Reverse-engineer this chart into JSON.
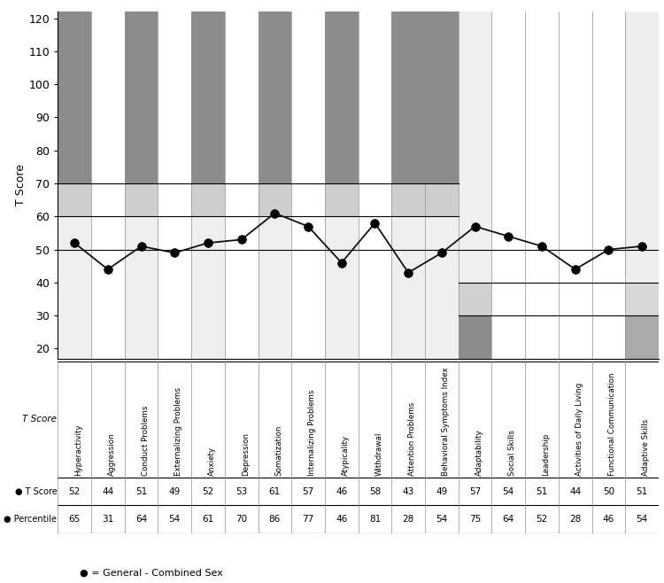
{
  "categories": [
    "Hyperactivity",
    "Aggression",
    "Conduct Problems",
    "Externalizing Problems",
    "Anxiety",
    "Depression",
    "Somatization",
    "Internalizing Problems",
    "Atypicality",
    "Withdrawal",
    "Attention Problems",
    "Behavioral Symptoms Index",
    "Adaptability",
    "Social Skills",
    "Leadership",
    "Activities of Daily Living",
    "Functional Communication",
    "Adaptive Skills"
  ],
  "t_scores": [
    52,
    44,
    51,
    49,
    52,
    53,
    61,
    57,
    46,
    58,
    43,
    49,
    57,
    54,
    51,
    44,
    50,
    51
  ],
  "percentiles": [
    65,
    31,
    64,
    54,
    61,
    70,
    86,
    77,
    46,
    81,
    28,
    54,
    75,
    64,
    52,
    28,
    46,
    54
  ],
  "ylim": [
    17,
    122
  ],
  "yticks": [
    20,
    30,
    40,
    50,
    60,
    70,
    80,
    90,
    100,
    110,
    120
  ],
  "n_clinical": 12,
  "n_total": 18,
  "col_bg": {
    "clinical": [
      [
        "#8C8C8C",
        "#D0D0D0",
        "#F0F0F0"
      ],
      [
        "#FFFFFF",
        "#FFFFFF",
        "#FFFFFF"
      ],
      [
        "#8C8C8C",
        "#D0D0D0",
        "#F0F0F0"
      ],
      [
        "#FFFFFF",
        "#FFFFFF",
        "#FFFFFF"
      ],
      [
        "#8C8C8C",
        "#D0D0D0",
        "#F0F0F0"
      ],
      [
        "#FFFFFF",
        "#FFFFFF",
        "#FFFFFF"
      ],
      [
        "#8C8C8C",
        "#D0D0D0",
        "#F0F0F0"
      ],
      [
        "#FFFFFF",
        "#FFFFFF",
        "#FFFFFF"
      ],
      [
        "#8C8C8C",
        "#D0D0D0",
        "#F0F0F0"
      ],
      [
        "#FFFFFF",
        "#FFFFFF",
        "#FFFFFF"
      ],
      [
        "#8C8C8C",
        "#D0D0D0",
        "#F0F0F0"
      ],
      [
        "#8C8C8C",
        "#D0D0D0",
        "#F0F0F0"
      ]
    ],
    "adaptive": [
      [
        "#8C8C8C",
        "#D0D0D0",
        "#F0F0F0"
      ],
      [
        "#FFFFFF",
        "#FFFFFF",
        "#FFFFFF"
      ],
      [
        "#FFFFFF",
        "#FFFFFF",
        "#FFFFFF"
      ],
      [
        "#FFFFFF",
        "#FFFFFF",
        "#FFFFFF"
      ],
      [
        "#FFFFFF",
        "#FFFFFF",
        "#FFFFFF"
      ],
      [
        "#E0E0E0",
        "#E0E0E0",
        "#E8E8E8"
      ]
    ]
  },
  "hline_color": "#000000",
  "vline_color": "#909090",
  "line_color": "#111111",
  "legend_text": "● = General - Combined Sex",
  "ylabel": "T Score"
}
